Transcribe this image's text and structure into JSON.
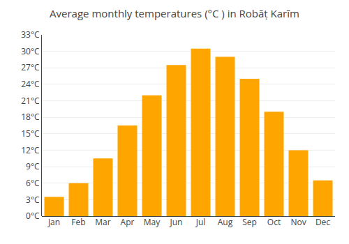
{
  "chart_data": {
    "type": "bar",
    "title": "Average monthly temperatures (°C ) in Robāṭ Karīm",
    "categories": [
      "Jan",
      "Feb",
      "Mar",
      "Apr",
      "May",
      "Jun",
      "Jul",
      "Aug",
      "Sep",
      "Oct",
      "Nov",
      "Dec"
    ],
    "values": [
      3.5,
      6.0,
      10.5,
      16.5,
      22.0,
      27.5,
      30.5,
      29.0,
      25.0,
      19.0,
      12.0,
      6.5
    ],
    "color": "#FFA500",
    "ylim": [
      0,
      33
    ],
    "yticks": [
      {
        "value": 0,
        "label": "0°C"
      },
      {
        "value": 3,
        "label": "3°C"
      },
      {
        "value": 6,
        "label": "6°C"
      },
      {
        "value": 9,
        "label": "9°C"
      },
      {
        "value": 12,
        "label": "12°C"
      },
      {
        "value": 15,
        "label": "15°C"
      },
      {
        "value": 18,
        "label": "18°C"
      },
      {
        "value": 21,
        "label": "21°C"
      },
      {
        "value": 24,
        "label": "24°C"
      },
      {
        "value": 27,
        "label": "27°C"
      },
      {
        "value": 30,
        "label": "30°C"
      },
      {
        "value": 33,
        "label": "33°C"
      }
    ],
    "grid": true
  }
}
